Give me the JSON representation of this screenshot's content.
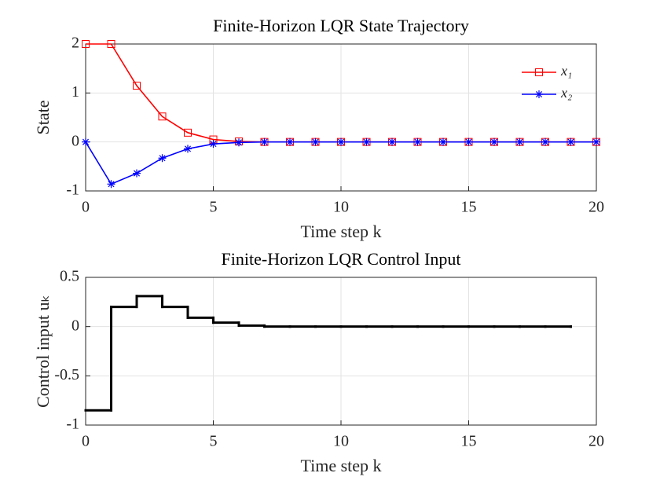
{
  "chart_data": [
    {
      "type": "line",
      "title": "Finite-Horizon LQR State Trajectory",
      "xlabel": "Time step k",
      "ylabel": "State",
      "x": [
        0,
        1,
        2,
        3,
        4,
        5,
        6,
        7,
        8,
        9,
        10,
        11,
        12,
        13,
        14,
        15,
        16,
        17,
        18,
        19,
        20
      ],
      "series": [
        {
          "name": "x₁",
          "color": "#ff0000",
          "marker": "square",
          "values": [
            2,
            2,
            1.15,
            0.52,
            0.19,
            0.05,
            0.01,
            0,
            0,
            0,
            0,
            0,
            0,
            0,
            0,
            0,
            0,
            0,
            0,
            0,
            0
          ]
        },
        {
          "name": "x₂",
          "color": "#0000ff",
          "marker": "asterisk",
          "values": [
            0,
            -0.86,
            -0.64,
            -0.33,
            -0.14,
            -0.04,
            -0.01,
            0,
            0,
            0,
            0,
            0,
            0,
            0,
            0,
            0,
            0,
            0,
            0,
            0,
            0
          ]
        }
      ],
      "xlim": [
        0,
        20
      ],
      "xticks": [
        0,
        5,
        10,
        15,
        20
      ],
      "ylim": [
        -1,
        2
      ],
      "yticks": [
        -1,
        0,
        1,
        2
      ],
      "grid": true,
      "legend": "northeast"
    },
    {
      "type": "step",
      "title": "Finite-Horizon LQR Control Input",
      "xlabel": "Time step k",
      "ylabel": "Control input uₖ",
      "x": [
        0,
        1,
        2,
        3,
        4,
        5,
        6,
        7,
        8,
        9,
        10,
        11,
        12,
        13,
        14,
        15,
        16,
        17,
        18,
        19
      ],
      "values": [
        -0.85,
        0.2,
        0.31,
        0.2,
        0.09,
        0.04,
        0.01,
        0,
        0,
        0,
        0,
        0,
        0,
        0,
        0,
        0,
        0,
        0,
        0,
        0
      ],
      "color": "#000000",
      "xlim": [
        0,
        20
      ],
      "xticks": [
        0,
        5,
        10,
        15,
        20
      ],
      "ylim": [
        -1,
        0.5
      ],
      "yticks": [
        -1,
        -0.5,
        0,
        0.5
      ],
      "grid": true
    }
  ]
}
